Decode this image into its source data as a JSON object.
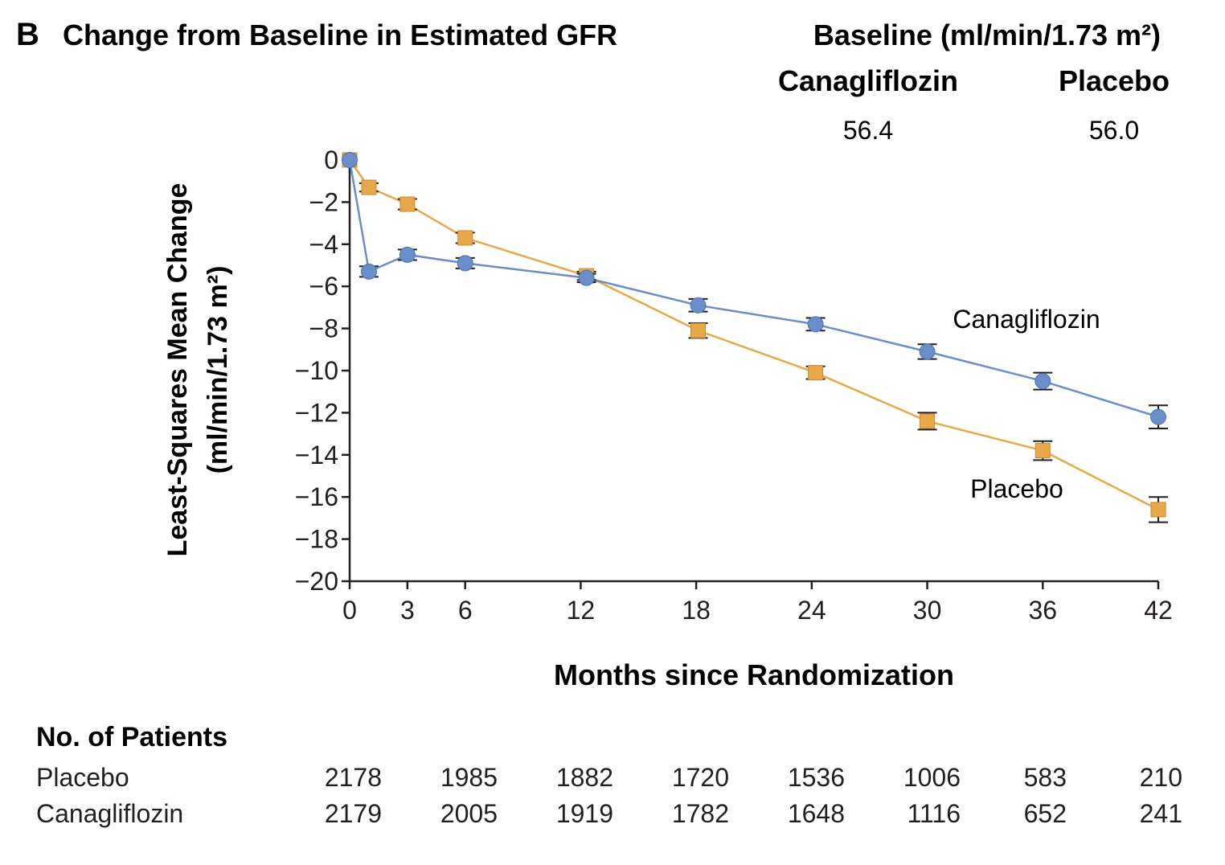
{
  "header": {
    "panel_letter": "B",
    "title": "Change from Baseline in Estimated GFR",
    "baseline_heading": "Baseline (ml/min/1.73 m²)",
    "baseline_columns": [
      {
        "group": "Canagliflozin",
        "value": "56.4"
      },
      {
        "group": "Placebo",
        "value": "56.0"
      }
    ]
  },
  "chart_data": {
    "type": "line",
    "xlabel": "Months since Randomization",
    "ylabel_line1": "Least-Squares Mean Change",
    "ylabel_line2": "(ml/min/1.73 m²)",
    "xlim": [
      0,
      42
    ],
    "ylim": [
      -20,
      0
    ],
    "x_ticks": [
      0,
      3,
      6,
      12,
      18,
      24,
      30,
      36,
      42
    ],
    "y_ticks": [
      0,
      -2,
      -4,
      -6,
      -8,
      -10,
      -12,
      -14,
      -16,
      -18,
      -20
    ],
    "grid": false,
    "colors": {
      "Canagliflozin": "#6a8ec9",
      "Placebo": "#e8a84a",
      "axis": "#231f20"
    },
    "series": [
      {
        "name": "Canagliflozin",
        "marker": "circle",
        "x": [
          0,
          1,
          3,
          6,
          12.3,
          18.1,
          24.2,
          30,
          36,
          42
        ],
        "y": [
          0,
          -5.3,
          -4.5,
          -4.9,
          -5.6,
          -6.9,
          -7.8,
          -9.1,
          -10.5,
          -12.2
        ],
        "error": [
          0,
          0.25,
          0.25,
          0.25,
          0.2,
          0.3,
          0.3,
          0.35,
          0.4,
          0.55
        ]
      },
      {
        "name": "Placebo",
        "marker": "square",
        "x": [
          0,
          1,
          3,
          6,
          12.3,
          18.1,
          24.2,
          30,
          36,
          42
        ],
        "y": [
          0,
          -1.3,
          -2.1,
          -3.7,
          -5.5,
          -8.1,
          -10.1,
          -12.4,
          -13.8,
          -16.6
        ],
        "error": [
          0,
          0.2,
          0.25,
          0.25,
          0.2,
          0.35,
          0.3,
          0.4,
          0.45,
          0.6
        ]
      }
    ],
    "annotations": [
      {
        "text": "Canagliflozin",
        "series": "Canagliflozin"
      },
      {
        "text": "Placebo",
        "series": "Placebo"
      }
    ]
  },
  "patients_table": {
    "title": "No. of Patients",
    "rows": [
      {
        "label": "Placebo",
        "values": [
          "2178",
          "1985",
          "1882",
          "1720",
          "1536",
          "1006",
          "583",
          "210"
        ]
      },
      {
        "label": "Canagliflozin",
        "values": [
          "2179",
          "2005",
          "1919",
          "1782",
          "1648",
          "1116",
          "652",
          "241"
        ]
      }
    ]
  }
}
